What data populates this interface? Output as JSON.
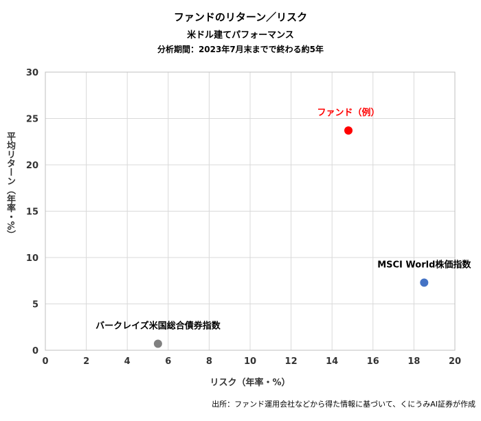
{
  "chart_data": {
    "type": "scatter",
    "title": "ファンドのリターン／リスク",
    "subtitle": "米ドル建てパフォーマンス",
    "period": "分析期間：2023年7月末までで終わる約5年",
    "xlabel": "リスク（年率・%）",
    "ylabel": "平均リターン（年率・%）",
    "xlim": [
      0,
      20
    ],
    "ylim": [
      0,
      30
    ],
    "xticks": [
      "0",
      "2",
      "4",
      "6",
      "8",
      "10",
      "12",
      "14",
      "16",
      "18",
      "20"
    ],
    "yticks": [
      "0",
      "5",
      "10",
      "15",
      "20",
      "25",
      "30"
    ],
    "grid": true,
    "points": [
      {
        "label": "ファンド（例）",
        "x": 14.8,
        "y": 23.7,
        "color": "#ff0000",
        "label_color": "#ff0000"
      },
      {
        "label": "MSCI World株価指数",
        "x": 18.5,
        "y": 7.3,
        "color": "#4472c4",
        "label_color": "#000000"
      },
      {
        "label": "バークレイズ米国総合債券指数",
        "x": 5.5,
        "y": 0.7,
        "color": "#808080",
        "label_color": "#000000"
      }
    ],
    "source": "出所：ファンド運用会社などから得た情報に基づいて、くにうみAI証券が作成"
  }
}
